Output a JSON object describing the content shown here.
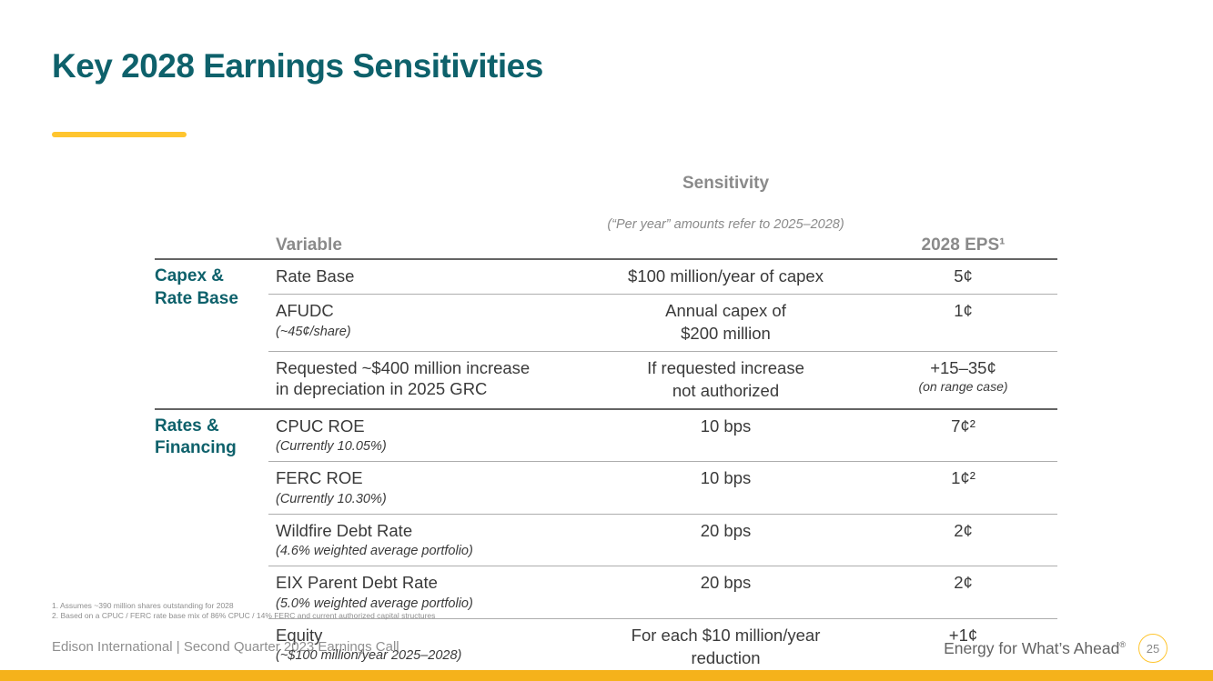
{
  "colors": {
    "teal": "#0e616b",
    "gold_underline": "#ffc52f",
    "gold_bar": "#f5b21b",
    "header_gray": "#8a8a8a",
    "body_text": "#3a3a3a",
    "rule_dark": "#646464",
    "rule_light": "#adadad"
  },
  "slide": {
    "title": "Key 2028 Earnings Sensitivities"
  },
  "table": {
    "headers": {
      "variable": "Variable",
      "sensitivity": "Sensitivity",
      "sensitivity_note": "(“Per year” amounts refer to 2025–2028)",
      "eps": "2028 EPS¹"
    },
    "rows": [
      {
        "group": "Capex &\nRate Base",
        "variable": "Rate Base",
        "variable_note": "",
        "sensitivity": "$100 million/year of capex",
        "eps": "5¢",
        "eps_note": ""
      },
      {
        "variable": "AFUDC",
        "variable_note": "(~45¢/share)",
        "sensitivity": "Annual capex of\n$200 million",
        "eps": "1¢",
        "eps_note": ""
      },
      {
        "variable": "Requested ~$400 million increase\nin depreciation in 2025 GRC",
        "variable_note": "",
        "sensitivity": "If requested increase\nnot authorized",
        "eps": "+15–35¢",
        "eps_note": "(on range case)"
      },
      {
        "group": "Rates &\nFinancing",
        "variable": "CPUC ROE",
        "variable_note": "(Currently 10.05%)",
        "sensitivity": "10 bps",
        "eps": "7¢²",
        "eps_note": ""
      },
      {
        "variable": "FERC ROE",
        "variable_note": "(Currently 10.30%)",
        "sensitivity": "10 bps",
        "eps": "1¢²",
        "eps_note": ""
      },
      {
        "variable": "Wildfire Debt Rate",
        "variable_note": "(4.6% weighted average portfolio)",
        "sensitivity": "20 bps",
        "eps": "2¢",
        "eps_note": ""
      },
      {
        "variable": "EIX Parent Debt Rate",
        "variable_note": "(5.0% weighted average portfolio)",
        "sensitivity": "20 bps",
        "eps": "2¢",
        "eps_note": ""
      },
      {
        "variable": "Equity",
        "variable_note": "(~$100 million/year 2025–2028)",
        "sensitivity": "For each $10 million/year\nreduction",
        "eps": "+1¢",
        "eps_note": ""
      }
    ]
  },
  "footnotes": [
    "1.   Assumes ~390 million shares outstanding for 2028",
    "2.   Based on a CPUC / FERC rate base mix of 86% CPUC / 14% FERC and current authorized capital structures"
  ],
  "footer": {
    "left": "Edison International |  Second Quarter 2023 Earnings Call",
    "tagline": "Energy for What’s Ahead",
    "tagline_reg": "®",
    "page_number": "25"
  }
}
